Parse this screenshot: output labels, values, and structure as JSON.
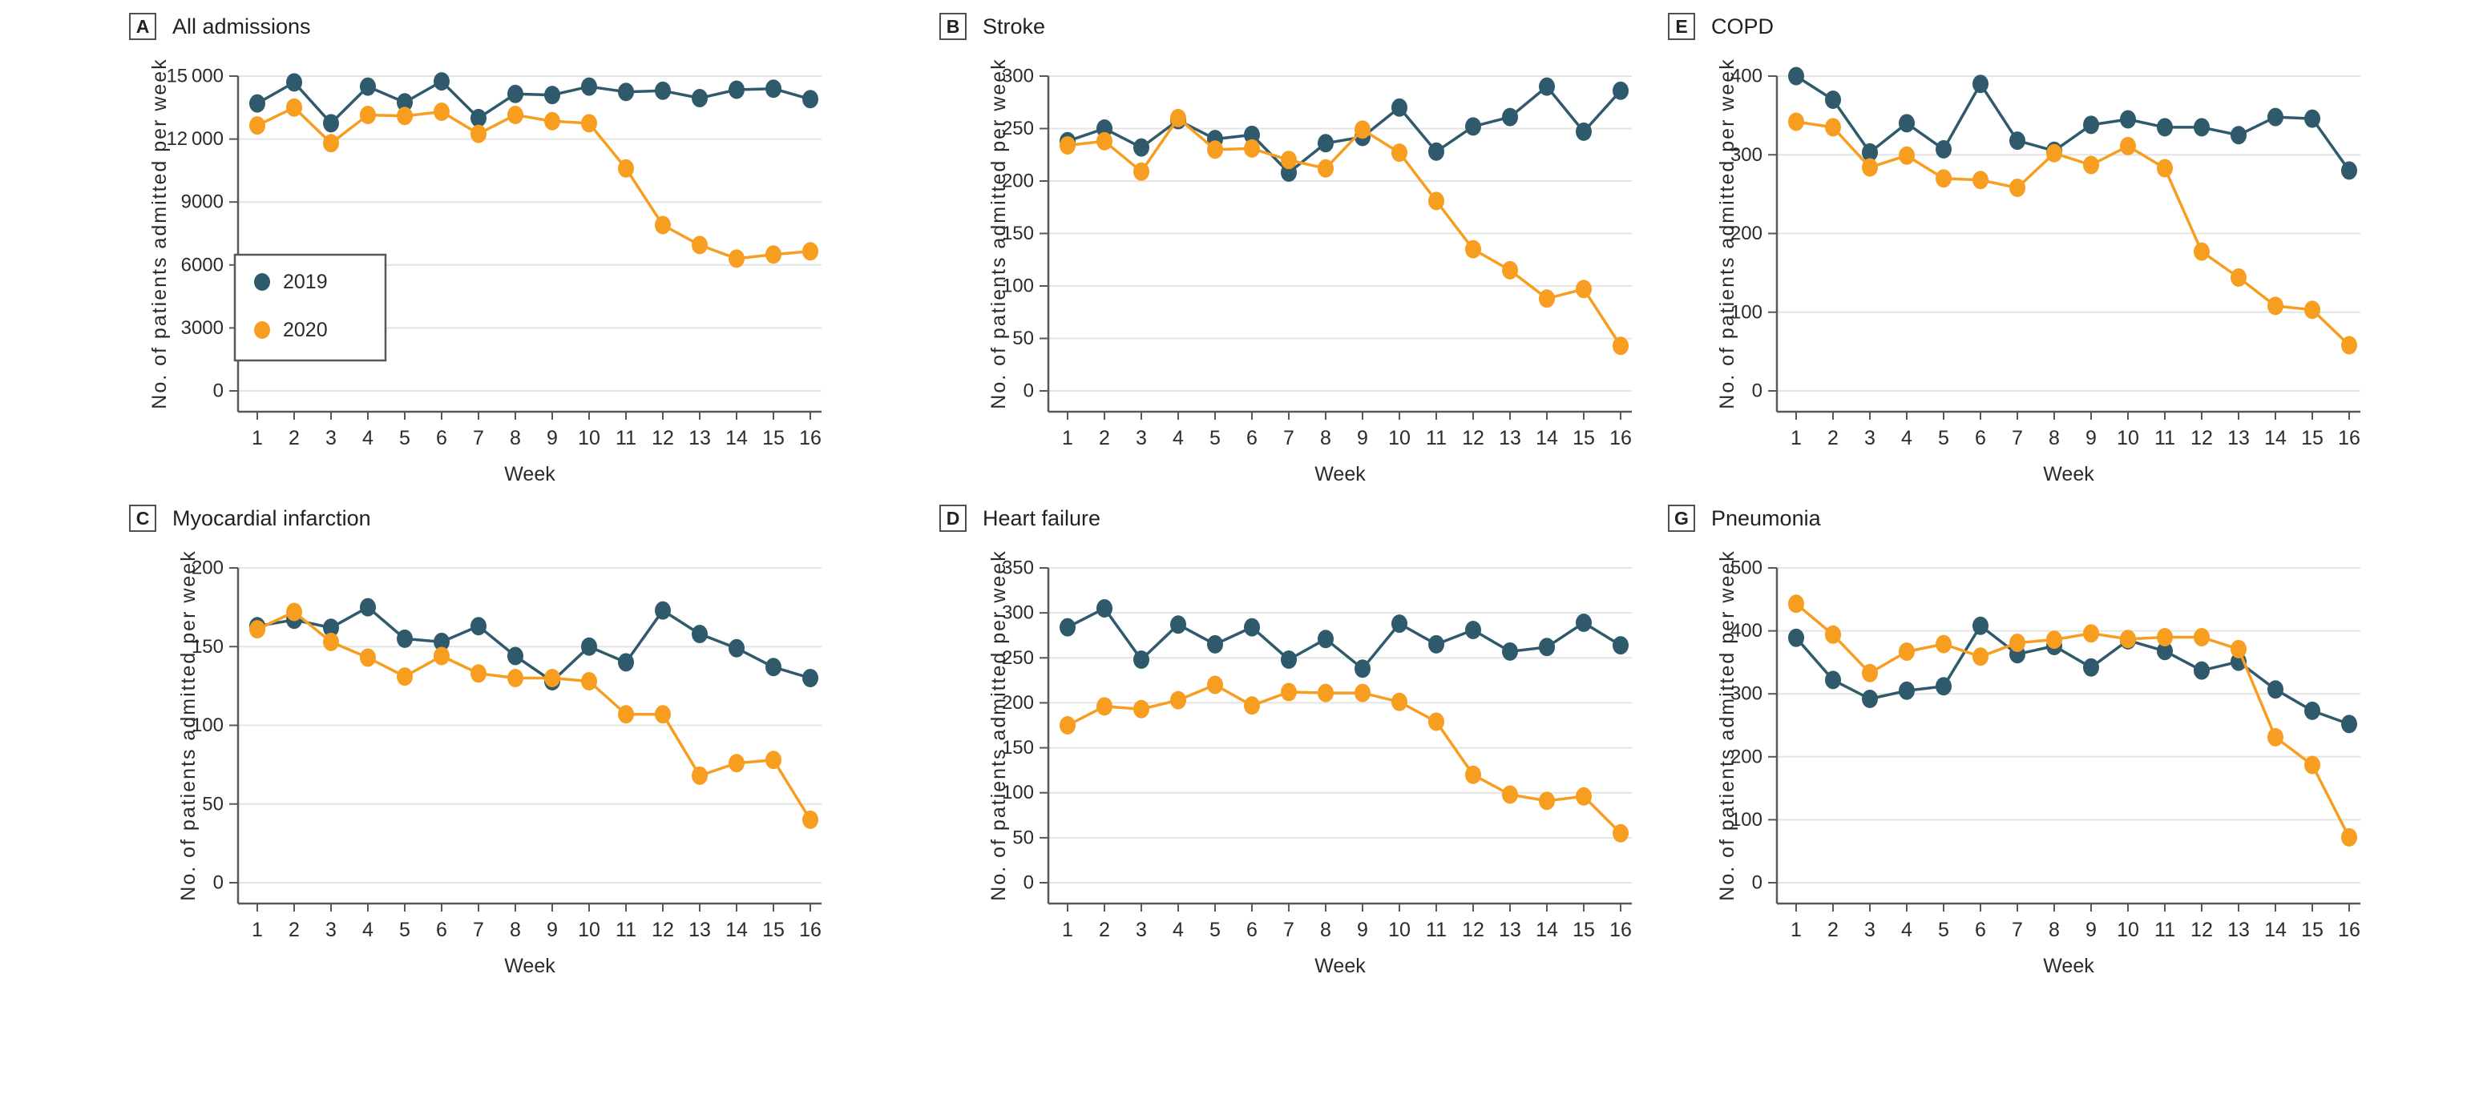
{
  "figure": {
    "ylabel": "No. of patients admitted per week",
    "xlabel": "Week",
    "weeks": [
      "1",
      "2",
      "3",
      "4",
      "5",
      "6",
      "7",
      "8",
      "9",
      "10",
      "11",
      "12",
      "13",
      "14",
      "15",
      "16"
    ],
    "legend": {
      "entries": [
        {
          "label": "2019",
          "color": "#2F5A6B"
        },
        {
          "label": "2020",
          "color": "#F79D20"
        }
      ]
    },
    "colors": {
      "series_2019": "#2F5A6B",
      "series_2020": "#F79D20",
      "grid": "#E4E4E4",
      "axis": "#55585C",
      "text": "#2B2B2B"
    }
  },
  "chart_data": [
    {
      "type": "line",
      "panel": "A",
      "title": "All admissions",
      "xlabel": "Week",
      "ylabel": "No. of patients admitted per week",
      "ylim": [
        0,
        15000
      ],
      "yticks": [
        0,
        3000,
        6000,
        9000,
        12000,
        15000
      ],
      "ytick_labels": [
        "0",
        "3000",
        "6000",
        "9000",
        "12 000",
        "15 000"
      ],
      "x": [
        1,
        2,
        3,
        4,
        5,
        6,
        7,
        8,
        9,
        10,
        11,
        12,
        13,
        14,
        15,
        16
      ],
      "grid": true,
      "show_legend": true,
      "legend_position": "lower-left",
      "series": [
        {
          "name": "2019",
          "color": "#2F5A6B",
          "values": [
            13700,
            14700,
            12750,
            14500,
            13750,
            14750,
            13000,
            14150,
            14100,
            14500,
            14250,
            14300,
            13950,
            14350,
            14400,
            13900
          ]
        },
        {
          "name": "2020",
          "color": "#F79D20",
          "values": [
            12650,
            13500,
            11800,
            13150,
            13100,
            13300,
            12250,
            13150,
            12850,
            12750,
            10600,
            7900,
            6950,
            6300,
            6500,
            6650
          ]
        }
      ]
    },
    {
      "type": "line",
      "panel": "B",
      "title": "Stroke",
      "xlabel": "Week",
      "ylabel": "No. of patients admitted per week",
      "ylim": [
        0,
        300
      ],
      "yticks": [
        0,
        50,
        100,
        150,
        200,
        250,
        300
      ],
      "ytick_labels": [
        "0",
        "50",
        "100",
        "150",
        "200",
        "250",
        "300"
      ],
      "x": [
        1,
        2,
        3,
        4,
        5,
        6,
        7,
        8,
        9,
        10,
        11,
        12,
        13,
        14,
        15,
        16
      ],
      "grid": true,
      "show_legend": false,
      "series": [
        {
          "name": "2019",
          "color": "#2F5A6B",
          "values": [
            238,
            250,
            232,
            258,
            240,
            244,
            208,
            236,
            242,
            270,
            228,
            252,
            261,
            290,
            247,
            286
          ]
        },
        {
          "name": "2020",
          "color": "#F79D20",
          "values": [
            234,
            238,
            209,
            260,
            230,
            231,
            220,
            212,
            249,
            227,
            181,
            135,
            115,
            88,
            97,
            43
          ]
        }
      ]
    },
    {
      "type": "line",
      "panel": "E",
      "title": "COPD",
      "xlabel": "Week",
      "ylabel": "No. of patients admitted per week",
      "ylim": [
        0,
        400
      ],
      "yticks": [
        0,
        100,
        200,
        300,
        400
      ],
      "ytick_labels": [
        "0",
        "100",
        "200",
        "300",
        "400"
      ],
      "x": [
        1,
        2,
        3,
        4,
        5,
        6,
        7,
        8,
        9,
        10,
        11,
        12,
        13,
        14,
        15,
        16
      ],
      "grid": true,
      "show_legend": false,
      "series": [
        {
          "name": "2019",
          "color": "#2F5A6B",
          "values": [
            400,
            370,
            303,
            340,
            307,
            390,
            318,
            305,
            338,
            345,
            335,
            335,
            325,
            348,
            346,
            280
          ]
        },
        {
          "name": "2020",
          "color": "#F79D20",
          "values": [
            342,
            335,
            284,
            299,
            270,
            268,
            258,
            302,
            287,
            311,
            283,
            177,
            144,
            108,
            103,
            58
          ]
        }
      ]
    },
    {
      "type": "line",
      "panel": "C",
      "title": "Myocardial infarction",
      "xlabel": "Week",
      "ylabel": "No. of patients admitted per week",
      "ylim": [
        0,
        200
      ],
      "yticks": [
        0,
        50,
        100,
        150,
        200
      ],
      "ytick_labels": [
        "0",
        "50",
        "100",
        "150",
        "200"
      ],
      "x": [
        1,
        2,
        3,
        4,
        5,
        6,
        7,
        8,
        9,
        10,
        11,
        12,
        13,
        14,
        15,
        16
      ],
      "grid": true,
      "show_legend": false,
      "series": [
        {
          "name": "2019",
          "color": "#2F5A6B",
          "values": [
            163,
            167,
            162,
            175,
            155,
            153,
            163,
            144,
            128,
            150,
            140,
            173,
            158,
            149,
            137,
            130
          ]
        },
        {
          "name": "2020",
          "color": "#F79D20",
          "values": [
            161,
            172,
            153,
            143,
            131,
            144,
            133,
            130,
            130,
            128,
            107,
            107,
            68,
            76,
            78,
            40
          ]
        }
      ]
    },
    {
      "type": "line",
      "panel": "D",
      "title": "Heart failure",
      "xlabel": "Week",
      "ylabel": "No. of patients admitted per week",
      "ylim": [
        0,
        350
      ],
      "yticks": [
        0,
        50,
        100,
        150,
        200,
        250,
        300,
        350
      ],
      "ytick_labels": [
        "0",
        "50",
        "100",
        "150",
        "200",
        "250",
        "300",
        "350"
      ],
      "x": [
        1,
        2,
        3,
        4,
        5,
        6,
        7,
        8,
        9,
        10,
        11,
        12,
        13,
        14,
        15,
        16
      ],
      "grid": true,
      "show_legend": false,
      "series": [
        {
          "name": "2019",
          "color": "#2F5A6B",
          "values": [
            284,
            305,
            248,
            287,
            265,
            284,
            248,
            271,
            238,
            288,
            265,
            281,
            257,
            262,
            289,
            264
          ]
        },
        {
          "name": "2020",
          "color": "#F79D20",
          "values": [
            175,
            196,
            193,
            203,
            220,
            197,
            212,
            211,
            211,
            201,
            179,
            120,
            98,
            91,
            96,
            55
          ]
        }
      ]
    },
    {
      "type": "line",
      "panel": "G",
      "title": "Pneumonia",
      "xlabel": "Week",
      "ylabel": "No. of patients admitted per week",
      "ylim": [
        0,
        500
      ],
      "yticks": [
        0,
        100,
        200,
        300,
        400,
        500
      ],
      "ytick_labels": [
        "0",
        "100",
        "200",
        "300",
        "400",
        "500"
      ],
      "x": [
        1,
        2,
        3,
        4,
        5,
        6,
        7,
        8,
        9,
        10,
        11,
        12,
        13,
        14,
        15,
        16
      ],
      "grid": true,
      "show_legend": false,
      "series": [
        {
          "name": "2019",
          "color": "#2F5A6B",
          "values": [
            389,
            322,
            292,
            305,
            312,
            408,
            363,
            376,
            342,
            385,
            368,
            337,
            351,
            307,
            273,
            252
          ]
        },
        {
          "name": "2020",
          "color": "#F79D20",
          "values": [
            443,
            394,
            333,
            367,
            379,
            359,
            381,
            386,
            396,
            387,
            390,
            390,
            371,
            231,
            187,
            72
          ]
        }
      ]
    }
  ]
}
